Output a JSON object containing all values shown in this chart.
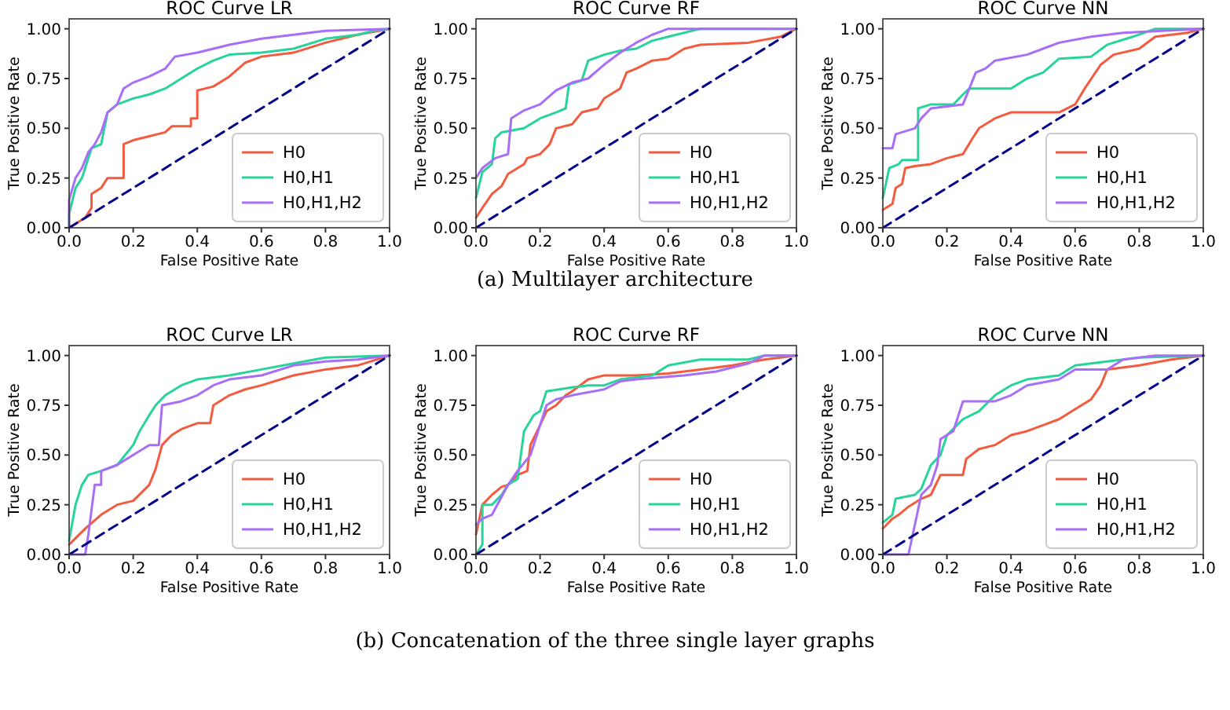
{
  "chart_data": [
    {
      "type": "line",
      "title": "ROC Curve LR",
      "xlabel": "False Positive Rate",
      "ylabel": "True Positive Rate",
      "xlim": [
        0,
        1
      ],
      "ylim": [
        0,
        1.05
      ],
      "xticks": [
        {
          "value": 0,
          "label": "0.0"
        },
        {
          "value": 0.2,
          "label": "0.2"
        },
        {
          "value": 0.4,
          "label": "0.4"
        },
        {
          "value": 0.6,
          "label": "0.6"
        },
        {
          "value": 0.8,
          "label": "0.8"
        },
        {
          "value": 1,
          "label": "1.0"
        }
      ],
      "yticks": [
        {
          "value": 0,
          "label": "0.00"
        },
        {
          "value": 0.25,
          "label": "0.25"
        },
        {
          "value": 0.5,
          "label": "0.50"
        },
        {
          "value": 0.75,
          "label": "0.75"
        },
        {
          "value": 1,
          "label": "1.00"
        }
      ],
      "legend": "bottom right",
      "annotations": [
        "(a) Multilayer architecture"
      ],
      "series": [
        {
          "name": "H0",
          "color": "#f35b3f",
          "x": [
            0,
            0.05,
            0.07,
            0.07,
            0.1,
            0.12,
            0.17,
            0.17,
            0.2,
            0.25,
            0.3,
            0.32,
            0.38,
            0.38,
            0.4,
            0.4,
            0.45,
            0.5,
            0.55,
            0.6,
            0.7,
            0.8,
            0.9,
            1
          ],
          "values": [
            0,
            0.05,
            0.1,
            0.17,
            0.2,
            0.25,
            0.25,
            0.42,
            0.44,
            0.46,
            0.48,
            0.51,
            0.51,
            0.55,
            0.55,
            0.69,
            0.71,
            0.76,
            0.83,
            0.86,
            0.88,
            0.93,
            0.97,
            1
          ]
        },
        {
          "name": "H0,H1",
          "color": "#27d49b",
          "x": [
            0,
            0,
            0.02,
            0.04,
            0.06,
            0.07,
            0.1,
            0.12,
            0.15,
            0.2,
            0.25,
            0.3,
            0.35,
            0.4,
            0.45,
            0.5,
            0.6,
            0.7,
            0.8,
            0.9,
            0.95,
            1
          ],
          "values": [
            0,
            0.07,
            0.2,
            0.25,
            0.35,
            0.4,
            0.42,
            0.58,
            0.62,
            0.65,
            0.67,
            0.7,
            0.75,
            0.8,
            0.84,
            0.87,
            0.88,
            0.9,
            0.95,
            0.97,
            0.99,
            1
          ]
        },
        {
          "name": "H0,H1,H2",
          "color": "#a86ef5",
          "x": [
            0,
            0,
            0.02,
            0.04,
            0.06,
            0.08,
            0.1,
            0.12,
            0.15,
            0.17,
            0.2,
            0.25,
            0.3,
            0.33,
            0.4,
            0.5,
            0.6,
            0.7,
            0.8,
            1
          ],
          "values": [
            0,
            0.14,
            0.25,
            0.3,
            0.38,
            0.42,
            0.48,
            0.58,
            0.62,
            0.7,
            0.73,
            0.76,
            0.8,
            0.86,
            0.88,
            0.92,
            0.95,
            0.97,
            0.99,
            1
          ]
        },
        {
          "type": "line",
          "color": "#00008b",
          "line_style": "dashed",
          "x": [
            0,
            1
          ],
          "values": [
            0,
            1
          ]
        }
      ]
    },
    {
      "type": "line",
      "title": "ROC Curve RF",
      "xlabel": "False Positive Rate",
      "ylabel": "True Positive Rate",
      "xlim": [
        0,
        1
      ],
      "ylim": [
        0,
        1.05
      ],
      "xticks": [
        {
          "value": 0,
          "label": "0.0"
        },
        {
          "value": 0.2,
          "label": "0.2"
        },
        {
          "value": 0.4,
          "label": "0.4"
        },
        {
          "value": 0.6,
          "label": "0.6"
        },
        {
          "value": 0.8,
          "label": "0.8"
        },
        {
          "value": 1,
          "label": "1.0"
        }
      ],
      "yticks": [
        {
          "value": 0,
          "label": "0.00"
        },
        {
          "value": 0.25,
          "label": "0.25"
        },
        {
          "value": 0.5,
          "label": "0.50"
        },
        {
          "value": 0.75,
          "label": "0.75"
        },
        {
          "value": 1,
          "label": "1.00"
        }
      ],
      "legend": "bottom right",
      "series": [
        {
          "name": "H0",
          "color": "#f35b3f",
          "x": [
            0,
            0.02,
            0.05,
            0.08,
            0.1,
            0.15,
            0.16,
            0.2,
            0.23,
            0.25,
            0.3,
            0.33,
            0.38,
            0.4,
            0.45,
            0.47,
            0.5,
            0.55,
            0.6,
            0.65,
            0.7,
            0.85,
            0.95,
            1
          ],
          "values": [
            0.05,
            0.1,
            0.17,
            0.21,
            0.27,
            0.32,
            0.35,
            0.37,
            0.42,
            0.5,
            0.52,
            0.58,
            0.6,
            0.65,
            0.7,
            0.78,
            0.8,
            0.84,
            0.85,
            0.9,
            0.92,
            0.93,
            0.96,
            1
          ]
        },
        {
          "name": "H0,H1",
          "color": "#27d49b",
          "x": [
            0,
            0.02,
            0.05,
            0.06,
            0.08,
            0.15,
            0.2,
            0.25,
            0.28,
            0.29,
            0.33,
            0.35,
            0.4,
            0.45,
            0.5,
            0.55,
            0.6,
            0.7,
            1
          ],
          "values": [
            0.15,
            0.28,
            0.32,
            0.45,
            0.48,
            0.5,
            0.55,
            0.58,
            0.6,
            0.72,
            0.74,
            0.84,
            0.87,
            0.89,
            0.9,
            0.94,
            0.96,
            1,
            1
          ]
        },
        {
          "name": "H0,H1,H2",
          "color": "#a86ef5",
          "x": [
            0,
            0.02,
            0.06,
            0.1,
            0.11,
            0.15,
            0.2,
            0.25,
            0.3,
            0.35,
            0.4,
            0.45,
            0.5,
            0.55,
            0.6,
            1
          ],
          "values": [
            0.25,
            0.3,
            0.35,
            0.37,
            0.55,
            0.59,
            0.62,
            0.69,
            0.73,
            0.75,
            0.82,
            0.88,
            0.93,
            0.97,
            1,
            1
          ]
        },
        {
          "type": "line",
          "color": "#00008b",
          "line_style": "dashed",
          "x": [
            0,
            1
          ],
          "values": [
            0,
            1
          ]
        }
      ]
    },
    {
      "type": "line",
      "title": "ROC Curve NN",
      "xlabel": "False Positive Rate",
      "ylabel": "True Positive Rate",
      "xlim": [
        0,
        1
      ],
      "ylim": [
        0,
        1.05
      ],
      "xticks": [
        {
          "value": 0,
          "label": "0.0"
        },
        {
          "value": 0.2,
          "label": "0.2"
        },
        {
          "value": 0.4,
          "label": "0.4"
        },
        {
          "value": 0.6,
          "label": "0.6"
        },
        {
          "value": 0.8,
          "label": "0.8"
        },
        {
          "value": 1,
          "label": "1.0"
        }
      ],
      "yticks": [
        {
          "value": 0,
          "label": "0.00"
        },
        {
          "value": 0.25,
          "label": "0.25"
        },
        {
          "value": 0.5,
          "label": "0.50"
        },
        {
          "value": 0.75,
          "label": "0.75"
        },
        {
          "value": 1,
          "label": "1.00"
        }
      ],
      "legend": "bottom right",
      "series": [
        {
          "name": "H0",
          "color": "#f35b3f",
          "x": [
            0,
            0.03,
            0.04,
            0.06,
            0.07,
            0.1,
            0.15,
            0.2,
            0.25,
            0.28,
            0.3,
            0.35,
            0.4,
            0.55,
            0.6,
            0.63,
            0.68,
            0.72,
            0.8,
            0.85,
            0.95,
            1
          ],
          "values": [
            0.09,
            0.12,
            0.2,
            0.22,
            0.3,
            0.31,
            0.32,
            0.35,
            0.37,
            0.45,
            0.5,
            0.55,
            0.58,
            0.58,
            0.62,
            0.7,
            0.82,
            0.87,
            0.9,
            0.96,
            0.98,
            1
          ]
        },
        {
          "name": "H0,H1",
          "color": "#27d49b",
          "x": [
            0,
            0.02,
            0.05,
            0.06,
            0.11,
            0.11,
            0.15,
            0.22,
            0.25,
            0.27,
            0.4,
            0.45,
            0.5,
            0.55,
            0.65,
            0.7,
            0.78,
            0.85,
            1
          ],
          "values": [
            0.15,
            0.3,
            0.32,
            0.34,
            0.34,
            0.6,
            0.62,
            0.62,
            0.67,
            0.7,
            0.7,
            0.75,
            0.78,
            0.85,
            0.86,
            0.92,
            0.96,
            1,
            1
          ]
        },
        {
          "name": "H0,H1,H2",
          "color": "#a86ef5",
          "x": [
            0,
            0.03,
            0.04,
            0.1,
            0.12,
            0.15,
            0.25,
            0.29,
            0.32,
            0.35,
            0.45,
            0.5,
            0.55,
            0.65,
            0.75,
            1
          ],
          "values": [
            0.4,
            0.4,
            0.47,
            0.5,
            0.55,
            0.6,
            0.62,
            0.78,
            0.8,
            0.84,
            0.87,
            0.9,
            0.93,
            0.96,
            0.98,
            1
          ]
        },
        {
          "type": "line",
          "color": "#00008b",
          "line_style": "dashed",
          "x": [
            0,
            1
          ],
          "values": [
            0,
            1
          ]
        }
      ]
    },
    {
      "type": "line",
      "title": "ROC Curve LR",
      "xlabel": "False Positive Rate",
      "ylabel": "True Positive Rate",
      "xlim": [
        0,
        1
      ],
      "ylim": [
        0,
        1.05
      ],
      "xticks": [
        {
          "value": 0,
          "label": "0.0"
        },
        {
          "value": 0.2,
          "label": "0.2"
        },
        {
          "value": 0.4,
          "label": "0.4"
        },
        {
          "value": 0.6,
          "label": "0.6"
        },
        {
          "value": 0.8,
          "label": "0.8"
        },
        {
          "value": 1,
          "label": "1.0"
        }
      ],
      "yticks": [
        {
          "value": 0,
          "label": "0.00"
        },
        {
          "value": 0.25,
          "label": "0.25"
        },
        {
          "value": 0.5,
          "label": "0.50"
        },
        {
          "value": 0.75,
          "label": "0.75"
        },
        {
          "value": 1,
          "label": "1.00"
        }
      ],
      "legend": "bottom right",
      "annotations": [
        "(b) Concatenation of the three single layer graphs"
      ],
      "series": [
        {
          "name": "H0",
          "color": "#f35b3f",
          "x": [
            0,
            0.05,
            0.1,
            0.15,
            0.2,
            0.25,
            0.27,
            0.29,
            0.32,
            0.35,
            0.4,
            0.44,
            0.45,
            0.5,
            0.55,
            0.6,
            0.7,
            0.8,
            0.9,
            1
          ],
          "values": [
            0.05,
            0.13,
            0.2,
            0.25,
            0.27,
            0.35,
            0.43,
            0.55,
            0.6,
            0.63,
            0.66,
            0.66,
            0.75,
            0.8,
            0.83,
            0.85,
            0.9,
            0.93,
            0.95,
            1
          ]
        },
        {
          "name": "H0,H1",
          "color": "#27d49b",
          "x": [
            0,
            0.02,
            0.04,
            0.06,
            0.1,
            0.15,
            0.2,
            0.22,
            0.25,
            0.27,
            0.3,
            0.35,
            0.4,
            0.5,
            0.6,
            0.7,
            0.8,
            1
          ],
          "values": [
            0.07,
            0.25,
            0.35,
            0.4,
            0.42,
            0.45,
            0.55,
            0.62,
            0.7,
            0.75,
            0.8,
            0.85,
            0.88,
            0.9,
            0.93,
            0.96,
            0.99,
            1
          ]
        },
        {
          "name": "H0,H1,H2",
          "color": "#a86ef5",
          "x": [
            0,
            0.05,
            0.06,
            0.08,
            0.1,
            0.1,
            0.15,
            0.2,
            0.25,
            0.28,
            0.29,
            0.35,
            0.4,
            0.45,
            0.5,
            0.6,
            0.7,
            0.8,
            0.9,
            1
          ],
          "values": [
            0,
            0,
            0.1,
            0.35,
            0.35,
            0.42,
            0.45,
            0.5,
            0.55,
            0.55,
            0.75,
            0.77,
            0.8,
            0.85,
            0.88,
            0.9,
            0.95,
            0.97,
            0.98,
            1
          ]
        },
        {
          "type": "line",
          "color": "#00008b",
          "line_style": "dashed",
          "x": [
            0,
            1
          ],
          "values": [
            0,
            1
          ]
        }
      ]
    },
    {
      "type": "line",
      "title": "ROC Curve RF",
      "xlabel": "False Positive Rate",
      "ylabel": "True Positive Rate",
      "xlim": [
        0,
        1
      ],
      "ylim": [
        0,
        1.05
      ],
      "xticks": [
        {
          "value": 0,
          "label": "0.0"
        },
        {
          "value": 0.2,
          "label": "0.2"
        },
        {
          "value": 0.4,
          "label": "0.4"
        },
        {
          "value": 0.6,
          "label": "0.6"
        },
        {
          "value": 0.8,
          "label": "0.8"
        },
        {
          "value": 1,
          "label": "1.0"
        }
      ],
      "yticks": [
        {
          "value": 0,
          "label": "0.00"
        },
        {
          "value": 0.25,
          "label": "0.25"
        },
        {
          "value": 0.5,
          "label": "0.50"
        },
        {
          "value": 0.75,
          "label": "0.75"
        },
        {
          "value": 1,
          "label": "1.00"
        }
      ],
      "legend": "bottom right",
      "series": [
        {
          "name": "H0",
          "color": "#f35b3f",
          "x": [
            0,
            0.02,
            0.05,
            0.08,
            0.1,
            0.13,
            0.16,
            0.17,
            0.2,
            0.22,
            0.25,
            0.28,
            0.3,
            0.35,
            0.4,
            0.5,
            0.6,
            0.7,
            0.8,
            0.9,
            1
          ],
          "values": [
            0.1,
            0.25,
            0.3,
            0.34,
            0.35,
            0.4,
            0.42,
            0.55,
            0.65,
            0.72,
            0.75,
            0.8,
            0.82,
            0.88,
            0.9,
            0.9,
            0.91,
            0.93,
            0.95,
            0.98,
            1
          ]
        },
        {
          "name": "H0,H1",
          "color": "#27d49b",
          "x": [
            0,
            0.02,
            0.02,
            0.05,
            0.08,
            0.1,
            0.13,
            0.15,
            0.18,
            0.2,
            0.22,
            0.3,
            0.35,
            0.4,
            0.45,
            0.55,
            0.6,
            0.7,
            0.85,
            0.9,
            1
          ],
          "values": [
            0,
            0.05,
            0.25,
            0.25,
            0.3,
            0.35,
            0.38,
            0.62,
            0.7,
            0.72,
            0.82,
            0.84,
            0.85,
            0.85,
            0.88,
            0.9,
            0.95,
            0.98,
            0.98,
            1,
            1
          ]
        },
        {
          "name": "H0,H1,H2",
          "color": "#a86ef5",
          "x": [
            0,
            0.02,
            0.05,
            0.1,
            0.13,
            0.17,
            0.19,
            0.22,
            0.25,
            0.3,
            0.4,
            0.45,
            0.5,
            0.65,
            0.75,
            0.85,
            0.9,
            1
          ],
          "values": [
            0.15,
            0.18,
            0.2,
            0.35,
            0.42,
            0.5,
            0.6,
            0.75,
            0.78,
            0.8,
            0.83,
            0.87,
            0.88,
            0.9,
            0.92,
            0.96,
            1,
            1
          ]
        },
        {
          "type": "line",
          "color": "#00008b",
          "line_style": "dashed",
          "x": [
            0,
            1
          ],
          "values": [
            0,
            1
          ]
        }
      ]
    },
    {
      "type": "line",
      "title": "ROC Curve NN",
      "xlabel": "False Positive Rate",
      "ylabel": "True Positive Rate",
      "xlim": [
        0,
        1
      ],
      "ylim": [
        0,
        1.05
      ],
      "xticks": [
        {
          "value": 0,
          "label": "0.0"
        },
        {
          "value": 0.2,
          "label": "0.2"
        },
        {
          "value": 0.4,
          "label": "0.4"
        },
        {
          "value": 0.6,
          "label": "0.6"
        },
        {
          "value": 0.8,
          "label": "0.8"
        },
        {
          "value": 1,
          "label": "1.0"
        }
      ],
      "yticks": [
        {
          "value": 0,
          "label": "0.00"
        },
        {
          "value": 0.25,
          "label": "0.25"
        },
        {
          "value": 0.5,
          "label": "0.50"
        },
        {
          "value": 0.75,
          "label": "0.75"
        },
        {
          "value": 1,
          "label": "1.00"
        }
      ],
      "legend": "bottom right",
      "series": [
        {
          "name": "H0",
          "color": "#f35b3f",
          "x": [
            0,
            0.03,
            0.05,
            0.08,
            0.12,
            0.15,
            0.18,
            0.25,
            0.26,
            0.3,
            0.35,
            0.4,
            0.45,
            0.5,
            0.55,
            0.6,
            0.65,
            0.68,
            0.7,
            0.8,
            0.9,
            1
          ],
          "values": [
            0.13,
            0.18,
            0.2,
            0.24,
            0.28,
            0.3,
            0.4,
            0.4,
            0.48,
            0.53,
            0.55,
            0.6,
            0.62,
            0.65,
            0.68,
            0.73,
            0.78,
            0.85,
            0.93,
            0.95,
            0.98,
            1
          ]
        },
        {
          "name": "H0,H1",
          "color": "#27d49b",
          "x": [
            0,
            0.03,
            0.04,
            0.1,
            0.12,
            0.15,
            0.18,
            0.2,
            0.25,
            0.3,
            0.35,
            0.4,
            0.45,
            0.55,
            0.6,
            0.7,
            0.8,
            1
          ],
          "values": [
            0.16,
            0.2,
            0.28,
            0.3,
            0.33,
            0.45,
            0.5,
            0.6,
            0.68,
            0.72,
            0.8,
            0.85,
            0.88,
            0.9,
            0.95,
            0.97,
            0.99,
            1
          ]
        },
        {
          "name": "H0,H1,H2",
          "color": "#a86ef5",
          "x": [
            0,
            0.08,
            0.1,
            0.12,
            0.15,
            0.17,
            0.18,
            0.22,
            0.25,
            0.35,
            0.4,
            0.45,
            0.55,
            0.6,
            0.7,
            0.75,
            0.85,
            1
          ],
          "values": [
            0,
            0,
            0.15,
            0.3,
            0.35,
            0.45,
            0.58,
            0.62,
            0.77,
            0.77,
            0.8,
            0.85,
            0.88,
            0.93,
            0.93,
            0.98,
            1,
            1
          ]
        },
        {
          "type": "line",
          "color": "#00008b",
          "line_style": "dashed",
          "x": [
            0,
            1
          ],
          "values": [
            0,
            1
          ]
        }
      ]
    }
  ]
}
